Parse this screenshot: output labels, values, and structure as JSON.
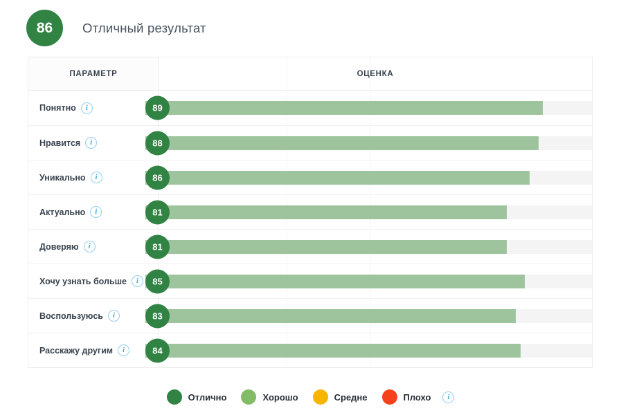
{
  "header": {
    "score": "86",
    "title": "Отличный результат"
  },
  "table": {
    "columns": {
      "parameter": "ПАРАМЕТР",
      "score": "ОЦЕНКА"
    },
    "rows": [
      {
        "label": "Понятно",
        "value": 89
      },
      {
        "label": "Нравится",
        "value": 88
      },
      {
        "label": "Уникально",
        "value": 86
      },
      {
        "label": "Актуально",
        "value": 81
      },
      {
        "label": "Доверяю",
        "value": 81
      },
      {
        "label": "Хочу узнать больше",
        "value": 85
      },
      {
        "label": "Воспользуюсь",
        "value": 83
      },
      {
        "label": "Расскажу другим",
        "value": 84
      }
    ]
  },
  "legend": {
    "items": [
      {
        "label": "Отлично",
        "color": "#318344"
      },
      {
        "label": "Хорошо",
        "color": "#83bb66"
      },
      {
        "label": "Средне",
        "color": "#f8b500"
      },
      {
        "label": "Плохо",
        "color": "#f5421c"
      }
    ]
  },
  "colors": {
    "badge_green": "#318344",
    "bar_green": "#9dc49d",
    "track_gray": "#f4f4f4",
    "info_blue": "#3fa9e2"
  },
  "chart_data": {
    "type": "bar",
    "orientation": "horizontal",
    "title": "Отличный результат",
    "overall_score": 86,
    "categories": [
      "Понятно",
      "Нравится",
      "Уникально",
      "Актуально",
      "Доверяю",
      "Хочу узнать больше",
      "Воспользуюсь",
      "Расскажу другим"
    ],
    "values": [
      89,
      88,
      86,
      81,
      81,
      85,
      83,
      84
    ],
    "xlim": [
      0,
      100
    ],
    "column_headers": [
      "ПАРАМЕТР",
      "ОЦЕНКА"
    ],
    "legend": [
      "Отлично",
      "Хорошо",
      "Средне",
      "Плохо"
    ],
    "legend_position": "bottom",
    "grid": "faint-vertical"
  }
}
